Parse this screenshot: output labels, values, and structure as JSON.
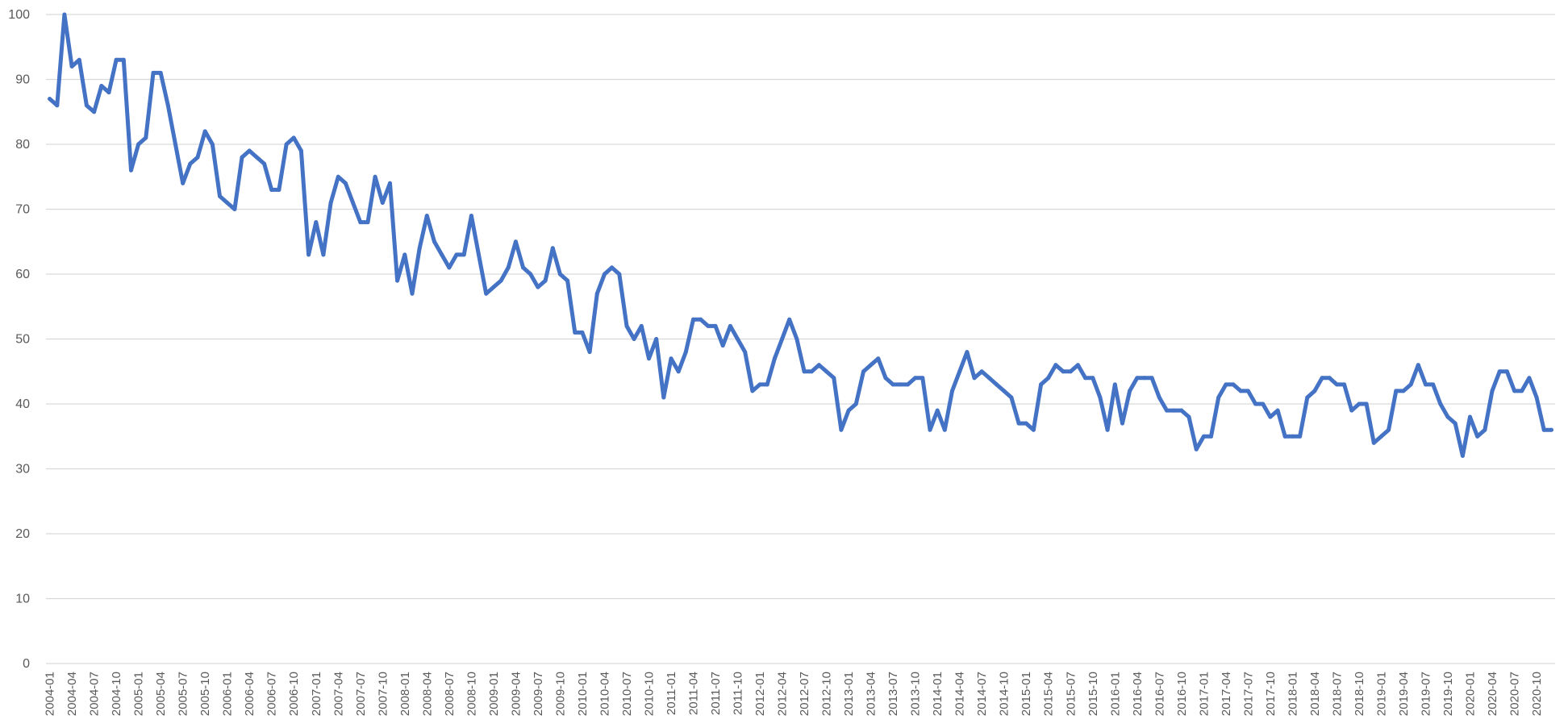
{
  "chart_data": {
    "type": "line",
    "title": "",
    "xlabel": "",
    "ylabel": "",
    "ylim": [
      0,
      100
    ],
    "yticks": [
      0,
      10,
      20,
      30,
      40,
      50,
      60,
      70,
      80,
      90,
      100
    ],
    "grid": true,
    "legend": "none",
    "x_start": "2004-01",
    "x_tick_labels": [
      "2004-01",
      "2004-04",
      "2004-07",
      "2004-10",
      "2005-01",
      "2005-04",
      "2005-07",
      "2005-10",
      "2006-01",
      "2006-04",
      "2006-07",
      "2006-10",
      "2007-01",
      "2007-04",
      "2007-07",
      "2007-10",
      "2008-01",
      "2008-04",
      "2008-07",
      "2008-10",
      "2009-01",
      "2009-04",
      "2009-07",
      "2009-10",
      "2010-01",
      "2010-04",
      "2010-07",
      "2010-10",
      "2011-01",
      "2011-04",
      "2011-07",
      "2011-10",
      "2012-01",
      "2012-04",
      "2012-07",
      "2012-10",
      "2013-01",
      "2013-04",
      "2013-07",
      "2013-10",
      "2014-01",
      "2014-04",
      "2014-07",
      "2014-10",
      "2015-01",
      "2015-04",
      "2015-07",
      "2015-10",
      "2016-01",
      "2016-04",
      "2016-07",
      "2016-10",
      "2017-01",
      "2017-04",
      "2017-07",
      "2017-10",
      "2018-01",
      "2018-04",
      "2018-07",
      "2018-10",
      "2019-01",
      "2019-04",
      "2019-07",
      "2019-10",
      "2020-01",
      "2020-04",
      "2020-07",
      "2020-10"
    ],
    "series": [
      {
        "color": "#4472c4",
        "values": [
          87,
          86,
          100,
          92,
          93,
          86,
          85,
          89,
          88,
          93,
          93,
          76,
          80,
          81,
          91,
          91,
          86,
          80,
          74,
          77,
          78,
          82,
          80,
          72,
          71,
          70,
          78,
          79,
          78,
          77,
          73,
          73,
          80,
          81,
          79,
          63,
          68,
          63,
          71,
          75,
          74,
          71,
          68,
          68,
          75,
          71,
          74,
          59,
          63,
          57,
          64,
          69,
          65,
          63,
          61,
          63,
          63,
          69,
          63,
          57,
          58,
          59,
          61,
          65,
          61,
          60,
          58,
          59,
          64,
          60,
          59,
          51,
          51,
          48,
          57,
          60,
          61,
          60,
          52,
          50,
          52,
          47,
          50,
          41,
          47,
          45,
          48,
          53,
          53,
          52,
          52,
          49,
          52,
          50,
          48,
          42,
          43,
          43,
          47,
          50,
          53,
          50,
          45,
          45,
          46,
          45,
          44,
          36,
          39,
          40,
          45,
          46,
          47,
          44,
          43,
          43,
          43,
          44,
          44,
          36,
          39,
          36,
          42,
          45,
          48,
          44,
          45,
          44,
          43,
          42,
          41,
          37,
          37,
          36,
          43,
          44,
          46,
          45,
          45,
          46,
          44,
          44,
          41,
          36,
          43,
          37,
          42,
          44,
          44,
          44,
          41,
          39,
          39,
          39,
          38,
          33,
          35,
          35,
          41,
          43,
          43,
          42,
          42,
          40,
          40,
          38,
          39,
          35,
          35,
          35,
          41,
          42,
          44,
          44,
          43,
          43,
          39,
          40,
          40,
          34,
          35,
          36,
          42,
          42,
          43,
          46,
          43,
          43,
          40,
          38,
          37,
          32,
          38,
          35,
          36,
          42,
          45,
          45,
          42,
          42,
          44,
          41,
          36,
          36
        ]
      }
    ]
  }
}
